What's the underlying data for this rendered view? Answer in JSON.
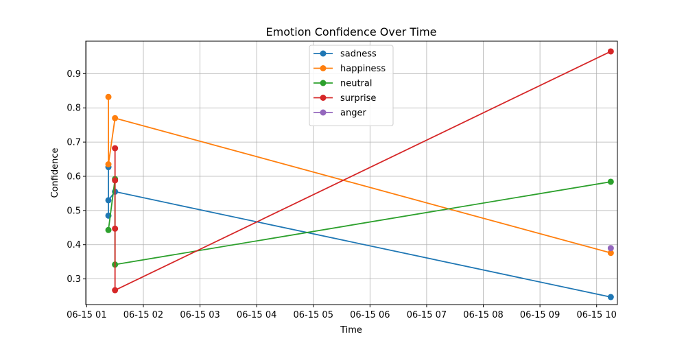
{
  "chart_data": {
    "type": "line",
    "title": "Emotion Confidence Over Time",
    "xlabel": "Time",
    "ylabel": "Confidence",
    "xlim": [
      "2015-06-15 00:59",
      "2015-06-15 10:22"
    ],
    "ylim": [
      0.225,
      0.995
    ],
    "grid": true,
    "legend_position": "top-center",
    "x_ticks": [
      {
        "t": "2015-06-15 01:00",
        "label": "06-15 01"
      },
      {
        "t": "2015-06-15 02:00",
        "label": "06-15 02"
      },
      {
        "t": "2015-06-15 03:00",
        "label": "06-15 03"
      },
      {
        "t": "2015-06-15 04:00",
        "label": "06-15 04"
      },
      {
        "t": "2015-06-15 05:00",
        "label": "06-15 05"
      },
      {
        "t": "2015-06-15 06:00",
        "label": "06-15 06"
      },
      {
        "t": "2015-06-15 07:00",
        "label": "06-15 07"
      },
      {
        "t": "2015-06-15 08:00",
        "label": "06-15 08"
      },
      {
        "t": "2015-06-15 09:00",
        "label": "06-15 09"
      },
      {
        "t": "2015-06-15 10:00",
        "label": "06-15 10"
      }
    ],
    "y_ticks": [
      {
        "v": 0.3,
        "label": "0.3"
      },
      {
        "v": 0.4,
        "label": "0.4"
      },
      {
        "v": 0.5,
        "label": "0.5"
      },
      {
        "v": 0.6,
        "label": "0.6"
      },
      {
        "v": 0.7,
        "label": "0.7"
      },
      {
        "v": 0.8,
        "label": "0.8"
      },
      {
        "v": 0.9,
        "label": "0.9"
      }
    ],
    "series": [
      {
        "name": "sadness",
        "color": "#1f77b4",
        "points": [
          {
            "t": "2015-06-15 01:23",
            "y": 0.485
          },
          {
            "t": "2015-06-15 01:23",
            "y": 0.627
          },
          {
            "t": "2015-06-15 01:23",
            "y": 0.53
          },
          {
            "t": "2015-06-15 01:30",
            "y": 0.555
          },
          {
            "t": "2015-06-15 10:15",
            "y": 0.247
          }
        ]
      },
      {
        "name": "happiness",
        "color": "#ff7f0e",
        "points": [
          {
            "t": "2015-06-15 01:23",
            "y": 0.832
          },
          {
            "t": "2015-06-15 01:23",
            "y": 0.635
          },
          {
            "t": "2015-06-15 01:30",
            "y": 0.77
          },
          {
            "t": "2015-06-15 10:15",
            "y": 0.376
          }
        ]
      },
      {
        "name": "neutral",
        "color": "#2ca02c",
        "points": [
          {
            "t": "2015-06-15 01:23",
            "y": 0.443
          },
          {
            "t": "2015-06-15 01:30",
            "y": 0.592
          },
          {
            "t": "2015-06-15 01:30",
            "y": 0.342
          },
          {
            "t": "2015-06-15 10:15",
            "y": 0.584
          }
        ]
      },
      {
        "name": "surprise",
        "color": "#d62728",
        "points": [
          {
            "t": "2015-06-15 01:30",
            "y": 0.682
          },
          {
            "t": "2015-06-15 01:30",
            "y": 0.447
          },
          {
            "t": "2015-06-15 01:30",
            "y": 0.588
          },
          {
            "t": "2015-06-15 01:30",
            "y": 0.267
          },
          {
            "t": "2015-06-15 10:15",
            "y": 0.965
          }
        ]
      },
      {
        "name": "anger",
        "color": "#9467bd",
        "points": [
          {
            "t": "2015-06-15 10:15",
            "y": 0.39
          }
        ]
      }
    ]
  }
}
